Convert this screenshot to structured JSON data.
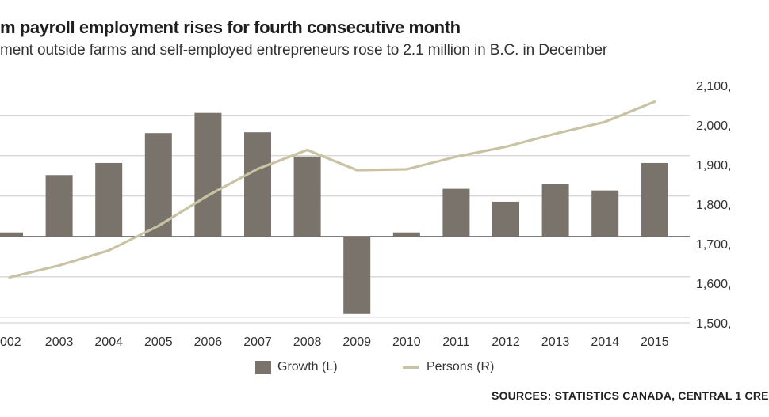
{
  "header": {
    "title": "m payroll employment rises for fourth consecutive month",
    "subtitle": "ment outside farms and self-employed entrepreneurs rose to 2.1 million in B.C. in December"
  },
  "chart_data": {
    "type": "bar",
    "categories": [
      "002",
      "2003",
      "2004",
      "2005",
      "2006",
      "2007",
      "2008",
      "2009",
      "2010",
      "2011",
      "2012",
      "2013",
      "2014",
      "2015"
    ],
    "series": [
      {
        "name": "Growth (L)",
        "type": "bar",
        "axis": "left",
        "values": [
          0.5,
          7.6,
          9.1,
          12.8,
          15.3,
          12.9,
          9.9,
          -9.6,
          0.5,
          5.9,
          4.3,
          6.5,
          5.7,
          9.1
        ],
        "color": "#7a736b"
      },
      {
        "name": "Persons (R)",
        "type": "line",
        "axis": "right",
        "values": [
          1615,
          1645,
          1683,
          1745,
          1822,
          1889,
          1937,
          1886,
          1888,
          1920,
          1945,
          1978,
          2008,
          2059
        ],
        "color": "#c9c3a4"
      }
    ],
    "left_axis": {
      "ylim": [
        -10.7,
        18.7
      ],
      "gridlines": [
        -10,
        -5,
        0,
        5,
        10,
        15
      ]
    },
    "right_axis": {
      "ylim": [
        1500,
        2100
      ],
      "ticks": [
        1500,
        1600,
        1700,
        1800,
        1900,
        2000,
        2100
      ],
      "tick_labels": [
        "1,500,",
        "1,600,",
        "1,700,",
        "1,800,",
        "1,900,",
        "2,000,",
        "2,100,"
      ]
    },
    "legend": [
      {
        "label": "Growth (L)",
        "kind": "bar",
        "color": "#7a736b"
      },
      {
        "label": "Persons (R)",
        "kind": "line",
        "color": "#c9c3a4"
      }
    ],
    "legend_position": "bottom-center"
  },
  "source": "SOURCES: STATISTICS CANADA, CENTRAL 1 CRE"
}
